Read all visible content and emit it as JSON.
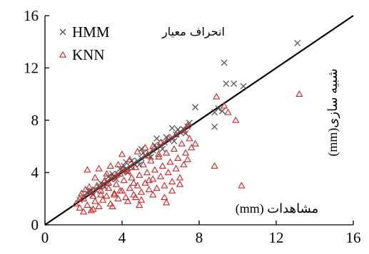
{
  "chart_data": {
    "type": "scatter",
    "title": "انحراف معیار",
    "xlabel": "مشاهدات (mm)",
    "ylabel": "شبیه سازی(mm)",
    "xlim": [
      0,
      16
    ],
    "ylim": [
      0,
      16
    ],
    "xticks": [
      "0",
      "4",
      "8",
      "12",
      "16"
    ],
    "yticks": [
      "0",
      "4",
      "8",
      "12",
      "16"
    ],
    "grid": false,
    "legend_position": "top-left",
    "reference_line": {
      "type": "1:1",
      "color": "#000000"
    },
    "series": [
      {
        "name": "HMM",
        "marker": "x",
        "color": "#555555",
        "points": [
          [
            1.8,
            1.9
          ],
          [
            2.0,
            2.2
          ],
          [
            2.2,
            2.4
          ],
          [
            2.4,
            2.6
          ],
          [
            2.6,
            2.7
          ],
          [
            2.8,
            2.9
          ],
          [
            3.0,
            3.1
          ],
          [
            3.2,
            3.3
          ],
          [
            3.4,
            3.5
          ],
          [
            3.6,
            3.7
          ],
          [
            3.8,
            3.9
          ],
          [
            4.0,
            4.1
          ],
          [
            4.2,
            4.3
          ],
          [
            4.4,
            4.5
          ],
          [
            4.6,
            4.7
          ],
          [
            4.8,
            4.9
          ],
          [
            5.0,
            5.1
          ],
          [
            5.2,
            5.3
          ],
          [
            5.4,
            5.5
          ],
          [
            5.6,
            5.7
          ],
          [
            5.8,
            5.9
          ],
          [
            6.0,
            6.1
          ],
          [
            6.2,
            6.3
          ],
          [
            6.4,
            6.5
          ],
          [
            6.6,
            6.7
          ],
          [
            6.8,
            6.9
          ],
          [
            7.0,
            7.1
          ],
          [
            7.2,
            7.3
          ],
          [
            7.4,
            7.5
          ],
          [
            2.5,
            2.3
          ],
          [
            3.1,
            2.9
          ],
          [
            3.7,
            3.5
          ],
          [
            4.3,
            4.0
          ],
          [
            4.9,
            4.6
          ],
          [
            5.5,
            5.2
          ],
          [
            6.1,
            5.8
          ],
          [
            6.7,
            6.4
          ],
          [
            7.3,
            7.0
          ],
          [
            3.3,
            3.7
          ],
          [
            3.9,
            4.3
          ],
          [
            4.5,
            4.9
          ],
          [
            5.1,
            5.5
          ],
          [
            5.7,
            6.1
          ],
          [
            6.3,
            6.7
          ],
          [
            6.9,
            7.3
          ],
          [
            4.2,
            4.8
          ],
          [
            5.0,
            5.8
          ],
          [
            5.8,
            6.6
          ],
          [
            6.6,
            7.4
          ],
          [
            7.5,
            7.8
          ],
          [
            7.8,
            9.0
          ],
          [
            8.8,
            7.5
          ],
          [
            8.8,
            8.6
          ],
          [
            9.0,
            8.9
          ],
          [
            9.2,
            8.7
          ],
          [
            9.3,
            12.4
          ],
          [
            9.4,
            10.8
          ],
          [
            9.8,
            10.8
          ],
          [
            10.3,
            10.6
          ],
          [
            13.1,
            13.9
          ],
          [
            2.3,
            2.6
          ],
          [
            2.9,
            3.2
          ],
          [
            3.5,
            3.9
          ],
          [
            4.1,
            4.5
          ]
        ]
      },
      {
        "name": "KNN",
        "marker": "triangle",
        "color": "#cc2222",
        "points": [
          [
            1.6,
            1.6
          ],
          [
            1.8,
            1.3
          ],
          [
            2.0,
            1.0
          ],
          [
            2.2,
            1.5
          ],
          [
            2.4,
            1.1
          ],
          [
            2.6,
            1.8
          ],
          [
            2.8,
            1.4
          ],
          [
            3.0,
            1.9
          ],
          [
            3.2,
            2.2
          ],
          [
            3.4,
            1.6
          ],
          [
            3.6,
            2.4
          ],
          [
            3.8,
            2.0
          ],
          [
            4.0,
            2.6
          ],
          [
            4.2,
            2.1
          ],
          [
            4.4,
            2.8
          ],
          [
            4.6,
            2.3
          ],
          [
            4.8,
            3.0
          ],
          [
            5.0,
            2.5
          ],
          [
            5.2,
            3.2
          ],
          [
            5.4,
            2.7
          ],
          [
            5.6,
            3.5
          ],
          [
            5.8,
            2.8
          ],
          [
            6.0,
            3.7
          ],
          [
            6.2,
            3.0
          ],
          [
            6.4,
            4.0
          ],
          [
            6.6,
            3.3
          ],
          [
            6.8,
            4.3
          ],
          [
            7.0,
            3.6
          ],
          [
            7.2,
            4.6
          ],
          [
            7.4,
            5.0
          ],
          [
            1.9,
            2.4
          ],
          [
            2.1,
            2.7
          ],
          [
            2.3,
            2.9
          ],
          [
            2.5,
            2.2
          ],
          [
            2.7,
            3.0
          ],
          [
            2.9,
            2.6
          ],
          [
            3.1,
            3.4
          ],
          [
            3.3,
            2.8
          ],
          [
            3.5,
            3.6
          ],
          [
            3.7,
            3.1
          ],
          [
            3.9,
            3.9
          ],
          [
            4.1,
            3.4
          ],
          [
            4.3,
            4.1
          ],
          [
            4.5,
            3.6
          ],
          [
            4.7,
            4.4
          ],
          [
            4.9,
            3.8
          ],
          [
            5.1,
            4.6
          ],
          [
            5.3,
            4.0
          ],
          [
            5.5,
            4.9
          ],
          [
            5.7,
            4.2
          ],
          [
            5.9,
            5.2
          ],
          [
            6.1,
            4.5
          ],
          [
            6.3,
            5.5
          ],
          [
            6.5,
            4.8
          ],
          [
            6.7,
            5.8
          ],
          [
            6.9,
            5.1
          ],
          [
            7.1,
            6.2
          ],
          [
            7.3,
            5.5
          ],
          [
            7.5,
            6.6
          ],
          [
            7.6,
            5.9
          ],
          [
            2.2,
            4.2
          ],
          [
            2.8,
            4.3
          ],
          [
            3.0,
            3.0
          ],
          [
            3.4,
            4.5
          ],
          [
            3.6,
            2.3
          ],
          [
            4.0,
            5.4
          ],
          [
            4.4,
            5.0
          ],
          [
            4.8,
            5.6
          ],
          [
            5.2,
            5.9
          ],
          [
            5.6,
            6.0
          ],
          [
            6.0,
            6.3
          ],
          [
            6.4,
            6.6
          ],
          [
            6.8,
            6.9
          ],
          [
            7.2,
            7.2
          ],
          [
            7.4,
            7.6
          ],
          [
            7.8,
            6.2
          ],
          [
            2.6,
            3.6
          ],
          [
            3.2,
            3.9
          ],
          [
            3.8,
            4.6
          ],
          [
            4.6,
            3.2
          ],
          [
            5.4,
            3.4
          ],
          [
            6.2,
            2.1
          ],
          [
            6.6,
            2.6
          ],
          [
            3.5,
            1.4
          ],
          [
            4.3,
            1.8
          ],
          [
            5.0,
            1.9
          ],
          [
            5.6,
            2.3
          ],
          [
            2.0,
            2.0
          ],
          [
            2.4,
            2.5
          ],
          [
            2.9,
            2.3
          ],
          [
            3.3,
            3.2
          ],
          [
            3.7,
            3.8
          ],
          [
            4.1,
            4.2
          ],
          [
            4.5,
            4.4
          ],
          [
            5.3,
            5.3
          ],
          [
            5.9,
            5.4
          ],
          [
            8.8,
            4.5
          ],
          [
            8.9,
            9.8
          ],
          [
            9.3,
            9.1
          ],
          [
            9.5,
            8.6
          ],
          [
            9.9,
            8.0
          ],
          [
            10.2,
            3.0
          ],
          [
            13.2,
            10.0
          ],
          [
            7.0,
            3.1
          ],
          [
            6.3,
            1.7
          ],
          [
            4.9,
            1.5
          ],
          [
            2.5,
            1.2
          ],
          [
            1.8,
            2.0
          ],
          [
            3.9,
            2.6
          ],
          [
            4.7,
            2.1
          ]
        ]
      }
    ]
  }
}
